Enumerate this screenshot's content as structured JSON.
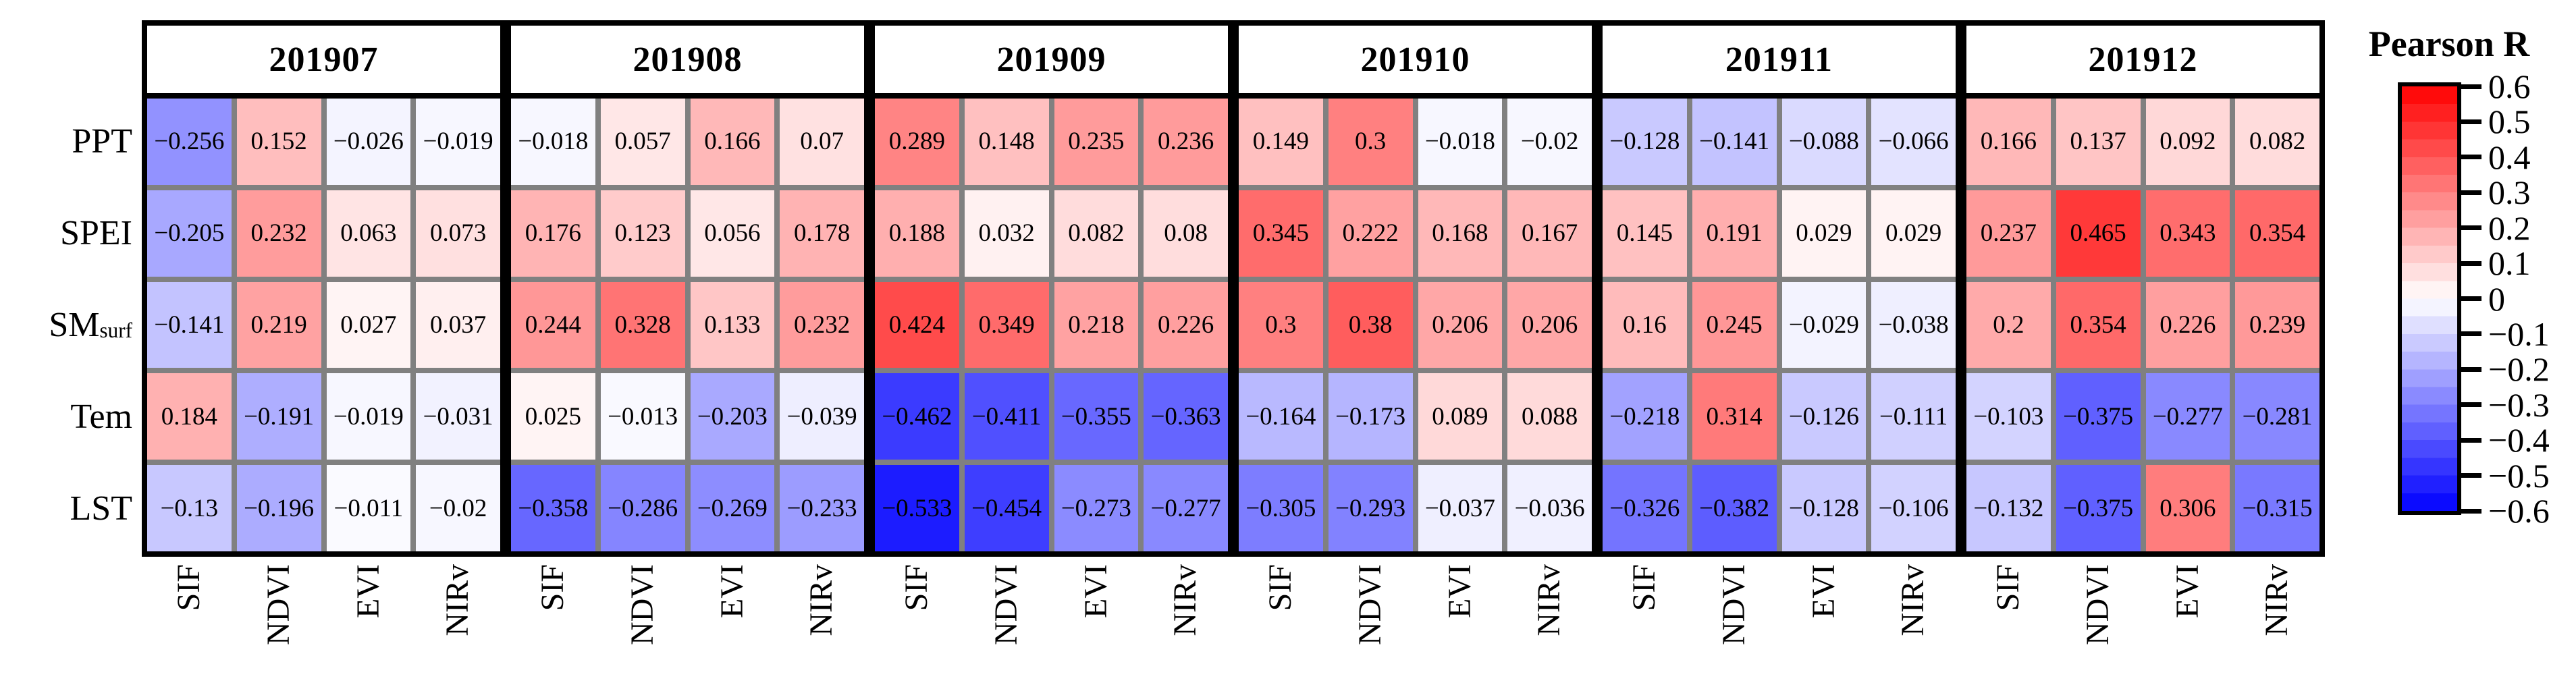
{
  "chart_data": {
    "type": "heatmap",
    "title": "",
    "panels": [
      "201907",
      "201908",
      "201909",
      "201910",
      "201911",
      "201912"
    ],
    "row_labels": [
      {
        "main": "PPT",
        "sub": ""
      },
      {
        "main": "SPEI",
        "sub": ""
      },
      {
        "main": "SM",
        "sub": "surf"
      },
      {
        "main": "Tem",
        "sub": ""
      },
      {
        "main": "LST",
        "sub": ""
      }
    ],
    "col_labels": [
      "SIF",
      "NDVI",
      "EVI",
      "NIRv"
    ],
    "values": {
      "201907": [
        [
          -0.256,
          0.152,
          -0.026,
          -0.019
        ],
        [
          -0.205,
          0.232,
          0.063,
          0.073
        ],
        [
          -0.141,
          0.219,
          0.027,
          0.037
        ],
        [
          0.184,
          -0.191,
          -0.019,
          -0.031
        ],
        [
          -0.13,
          -0.196,
          -0.011,
          -0.02
        ]
      ],
      "201908": [
        [
          -0.018,
          0.057,
          0.166,
          0.07
        ],
        [
          0.176,
          0.123,
          0.056,
          0.178
        ],
        [
          0.244,
          0.328,
          0.133,
          0.232
        ],
        [
          0.025,
          -0.013,
          -0.203,
          -0.039
        ],
        [
          -0.358,
          -0.286,
          -0.269,
          -0.233
        ]
      ],
      "201909": [
        [
          0.289,
          0.148,
          0.235,
          0.236
        ],
        [
          0.188,
          0.032,
          0.082,
          0.08
        ],
        [
          0.424,
          0.349,
          0.218,
          0.226
        ],
        [
          -0.462,
          -0.411,
          -0.355,
          -0.363
        ],
        [
          -0.533,
          -0.454,
          -0.273,
          -0.277
        ]
      ],
      "201910": [
        [
          0.149,
          0.3,
          -0.018,
          -0.02
        ],
        [
          0.345,
          0.222,
          0.168,
          0.167
        ],
        [
          0.3,
          0.38,
          0.206,
          0.206
        ],
        [
          -0.164,
          -0.173,
          0.089,
          0.088
        ],
        [
          -0.305,
          -0.293,
          -0.037,
          -0.036
        ]
      ],
      "201911": [
        [
          -0.128,
          -0.141,
          -0.088,
          -0.066
        ],
        [
          0.145,
          0.191,
          0.029,
          0.029
        ],
        [
          0.16,
          0.245,
          -0.029,
          -0.038
        ],
        [
          -0.218,
          0.314,
          -0.126,
          -0.111
        ],
        [
          -0.326,
          -0.382,
          -0.128,
          -0.106
        ]
      ],
      "201912": [
        [
          0.166,
          0.137,
          0.092,
          0.082
        ],
        [
          0.237,
          0.465,
          0.343,
          0.354
        ],
        [
          0.2,
          0.354,
          0.226,
          0.239
        ],
        [
          -0.103,
          -0.375,
          -0.277,
          -0.281
        ],
        [
          -0.132,
          -0.375,
          0.306,
          -0.315
        ]
      ]
    },
    "colorbar": {
      "title": "Pearson R",
      "ticks": [
        0.6,
        0.5,
        0.4,
        0.3,
        0.2,
        0.1,
        0,
        -0.1,
        -0.2,
        -0.3,
        -0.4,
        -0.5,
        -0.6
      ],
      "vmin": -0.6,
      "vmax": 0.6,
      "colormap": "blue-white-red",
      "min_color": "#0000ff",
      "mid_color": "#ffffff",
      "max_color": "#ff0000",
      "bands": 24
    },
    "grid_line_color": "#808080",
    "border_color": "#000000",
    "legend_position": "right",
    "grid": true
  }
}
